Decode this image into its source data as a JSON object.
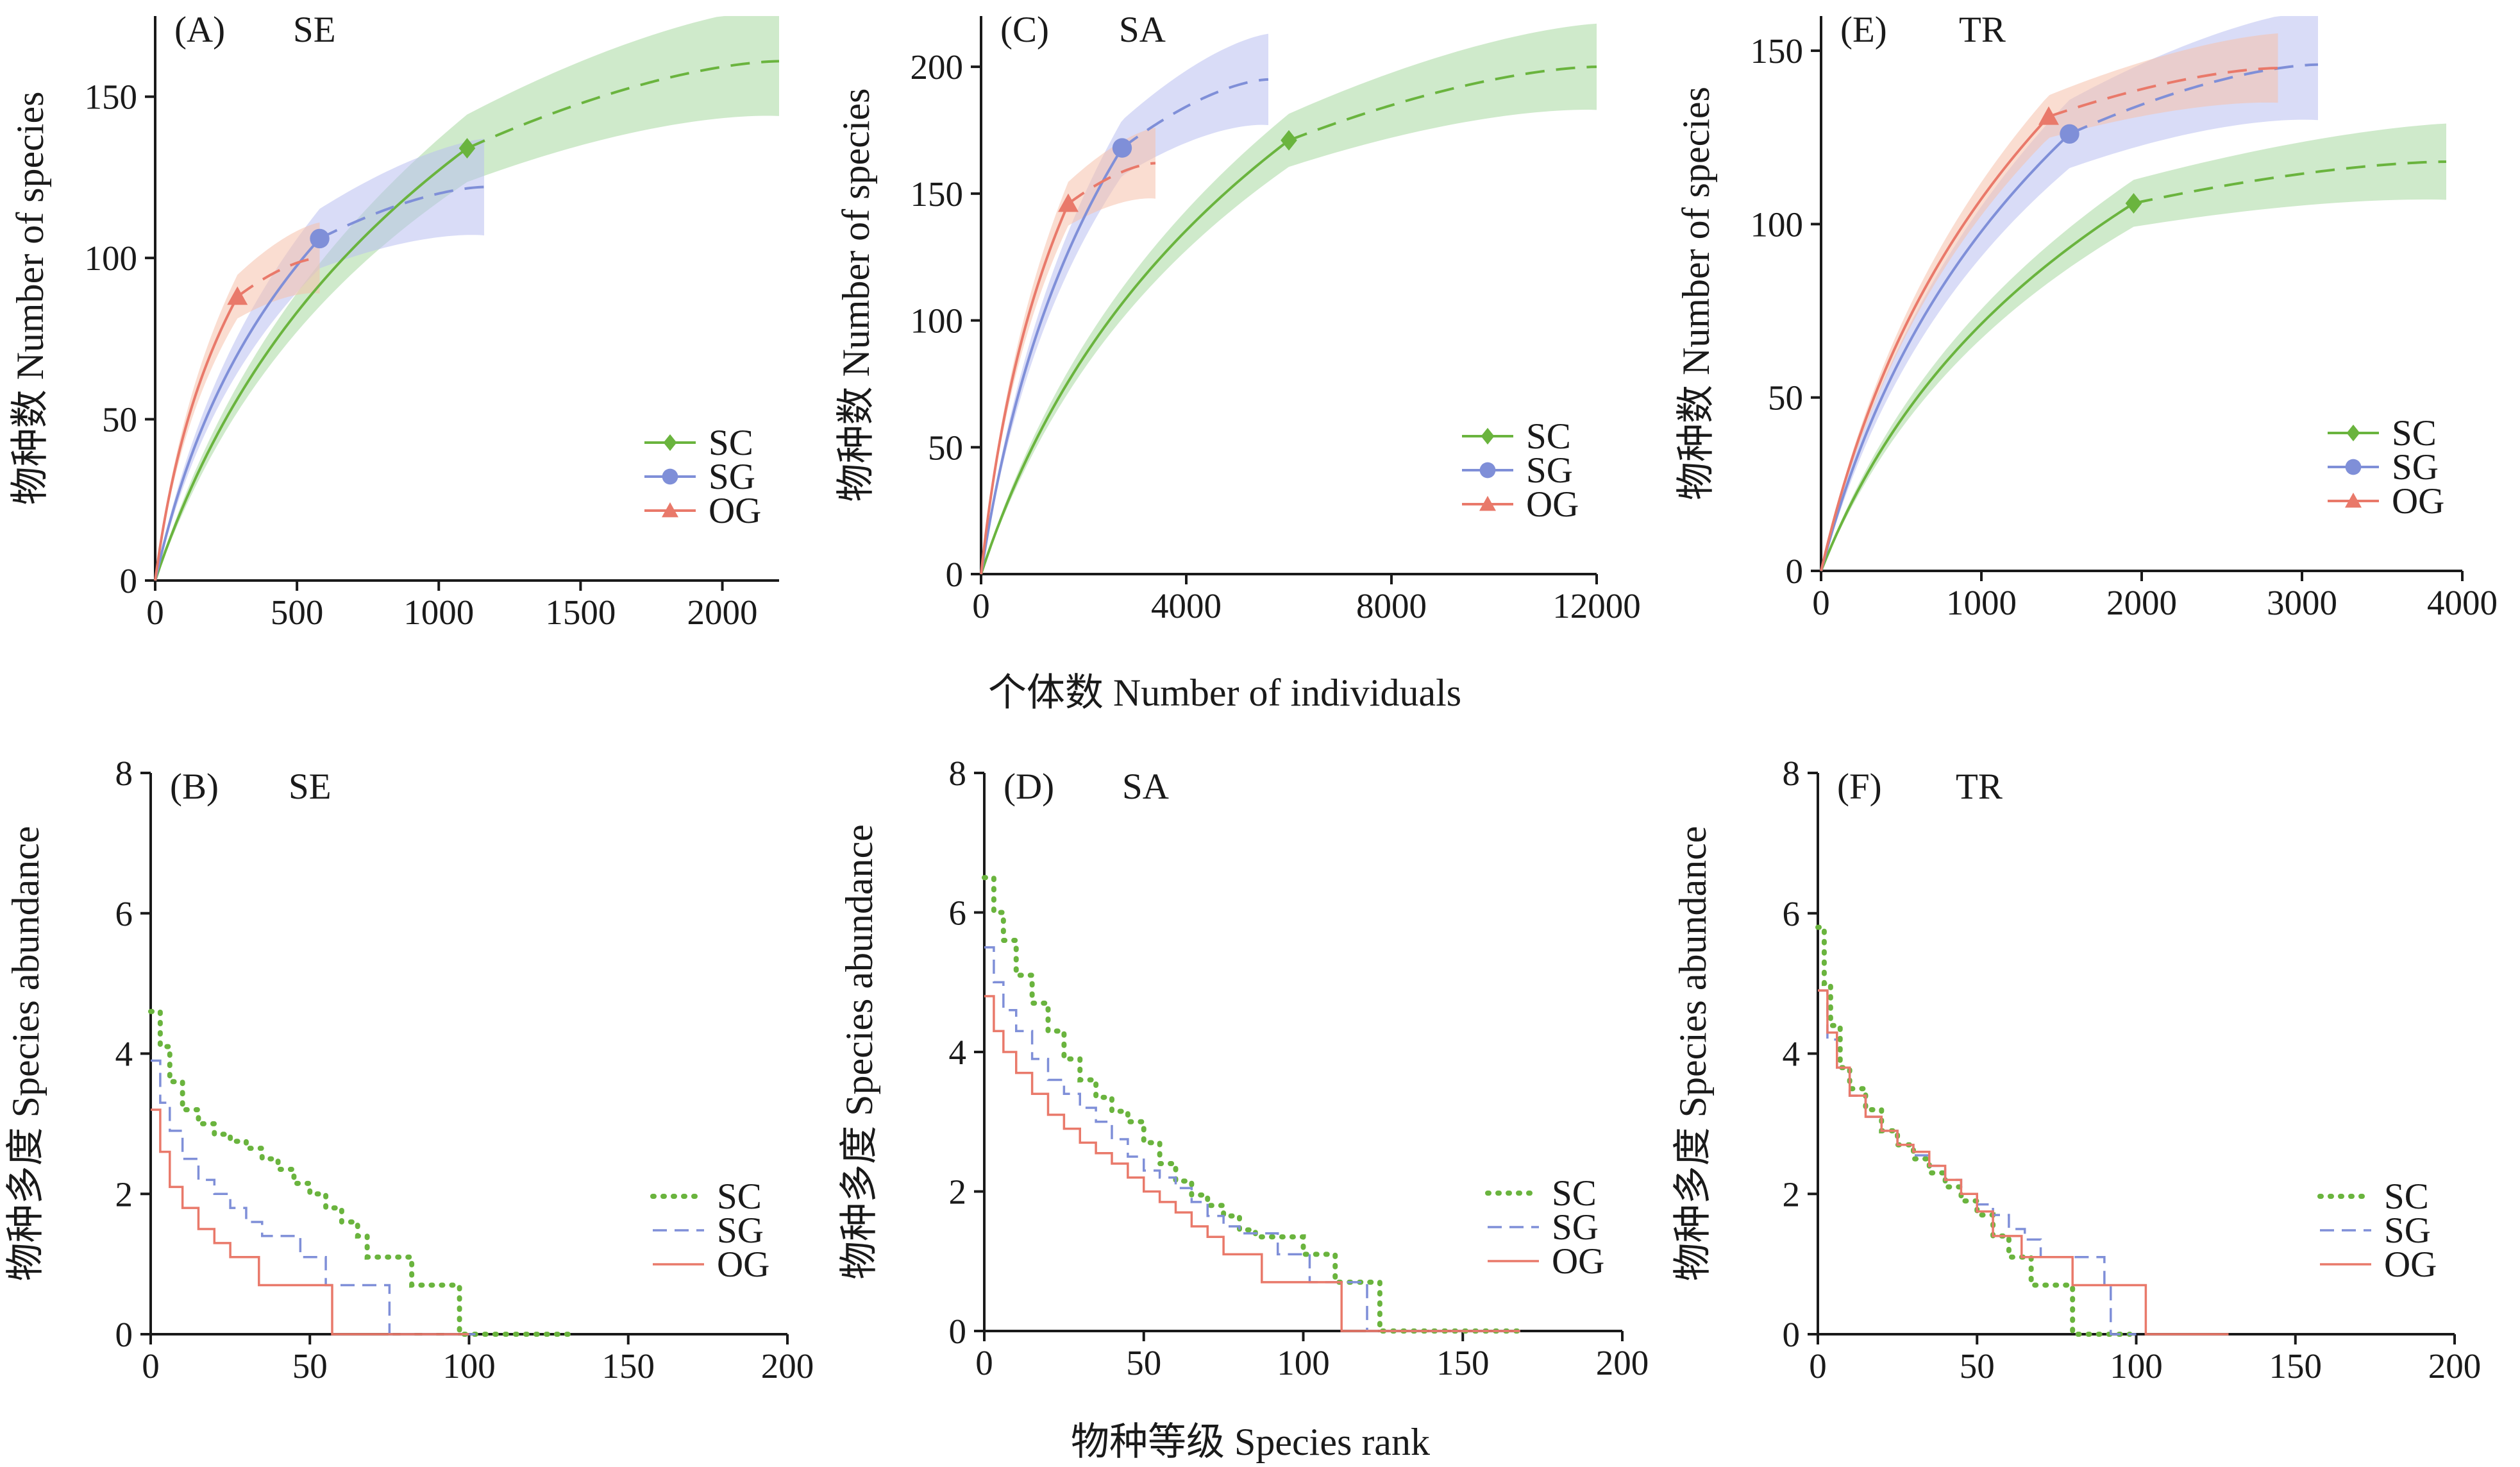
{
  "colors": {
    "SC": "#6ab43e",
    "SG": "#7f8fd8",
    "OG": "#e9796a",
    "SC_band": "#a8d8a0",
    "SG_band": "#b9bff0",
    "OG_band": "#f6c1ab",
    "axis": "#1a1a1a"
  },
  "shared_labels": {
    "top_xlabel": "个体数 Number of individuals",
    "bottom_xlabel": "物种等级 Species rank"
  },
  "chart_data": [
    {
      "id": "A",
      "type": "line",
      "panel_label": "(A)",
      "site": "SE",
      "ylabel": "物种数 Number of species",
      "xlim": [
        0,
        2200
      ],
      "ylim": [
        0,
        175
      ],
      "xticks": [
        0,
        500,
        1000,
        1500,
        2000
      ],
      "yticks": [
        0,
        50,
        100,
        150
      ],
      "legend_position": "bottom-right",
      "legend_marker": "line-marker",
      "series": [
        {
          "name": "SC",
          "marker": "diamond",
          "observed": {
            "x": 1100,
            "y": 134
          },
          "extrapolated_max": 2200,
          "end_value": 161,
          "band_halfwidth": 17
        },
        {
          "name": "SG",
          "marker": "circle",
          "observed": {
            "x": 580,
            "y": 106
          },
          "extrapolated_max": 1160,
          "end_value": 122,
          "band_halfwidth": 15
        },
        {
          "name": "OG",
          "marker": "triangle",
          "observed": {
            "x": 290,
            "y": 88
          },
          "extrapolated_max": 580,
          "end_value": 100,
          "band_halfwidth": 11
        }
      ]
    },
    {
      "id": "C",
      "type": "line",
      "panel_label": "(C)",
      "site": "SA",
      "ylabel": "物种数 Number of species",
      "xlim": [
        0,
        12000
      ],
      "ylim": [
        0,
        220
      ],
      "xticks": [
        0,
        4000,
        8000,
        12000
      ],
      "yticks": [
        0,
        50,
        100,
        150,
        200
      ],
      "legend_position": "bottom-right",
      "legend_marker": "line-marker",
      "series": [
        {
          "name": "SC",
          "marker": "diamond",
          "observed": {
            "x": 6000,
            "y": 171
          },
          "extrapolated_max": 12000,
          "end_value": 200,
          "band_halfwidth": 17
        },
        {
          "name": "SG",
          "marker": "circle",
          "observed": {
            "x": 2750,
            "y": 168
          },
          "extrapolated_max": 5600,
          "end_value": 195,
          "band_halfwidth": 18
        },
        {
          "name": "OG",
          "marker": "triangle",
          "observed": {
            "x": 1700,
            "y": 146
          },
          "extrapolated_max": 3400,
          "end_value": 162,
          "band_halfwidth": 14
        }
      ]
    },
    {
      "id": "E",
      "type": "line",
      "panel_label": "(E)",
      "site": "TR",
      "ylabel": "物种数 Number of species",
      "xlim": [
        0,
        4000
      ],
      "ylim": [
        0,
        160
      ],
      "xticks": [
        0,
        1000,
        2000,
        3000,
        4000
      ],
      "yticks": [
        0,
        50,
        100,
        150
      ],
      "legend_position": "bottom-right",
      "legend_marker": "line-marker",
      "series": [
        {
          "name": "SC",
          "marker": "diamond",
          "observed": {
            "x": 1950,
            "y": 106
          },
          "extrapolated_max": 3900,
          "end_value": 118,
          "band_halfwidth": 11
        },
        {
          "name": "SG",
          "marker": "circle",
          "observed": {
            "x": 1550,
            "y": 126
          },
          "extrapolated_max": 3100,
          "end_value": 146,
          "band_halfwidth": 16
        },
        {
          "name": "OG",
          "marker": "triangle",
          "observed": {
            "x": 1420,
            "y": 131
          },
          "extrapolated_max": 2850,
          "end_value": 145,
          "band_halfwidth": 10
        }
      ]
    },
    {
      "id": "B",
      "type": "line",
      "panel_label": "(B)",
      "site": "SE",
      "ylabel": "物种多度 Species abundance",
      "xlim": [
        0,
        200
      ],
      "ylim": [
        0,
        8
      ],
      "xticks": [
        0,
        50,
        100,
        150,
        200
      ],
      "yticks": [
        0,
        2,
        4,
        6,
        8
      ],
      "legend_position": "bottom-right",
      "legend_marker": "line-style",
      "series": [
        {
          "name": "SC",
          "style": "dotted",
          "points": [
            [
              0,
              4.6
            ],
            [
              3,
              4.1
            ],
            [
              6,
              3.6
            ],
            [
              10,
              3.2
            ],
            [
              15,
              3.0
            ],
            [
              20,
              2.85
            ],
            [
              25,
              2.75
            ],
            [
              30,
              2.65
            ],
            [
              35,
              2.5
            ],
            [
              40,
              2.35
            ],
            [
              45,
              2.15
            ],
            [
              50,
              2.0
            ],
            [
              55,
              1.8
            ],
            [
              60,
              1.6
            ],
            [
              65,
              1.4
            ],
            [
              68,
              1.1
            ],
            [
              80,
              1.1
            ],
            [
              82,
              0.7
            ],
            [
              95,
              0.7
            ],
            [
              97,
              0
            ],
            [
              132,
              0
            ]
          ]
        },
        {
          "name": "SG",
          "style": "dashed",
          "points": [
            [
              0,
              3.9
            ],
            [
              3,
              3.3
            ],
            [
              6,
              2.9
            ],
            [
              10,
              2.5
            ],
            [
              15,
              2.2
            ],
            [
              20,
              2.0
            ],
            [
              25,
              1.8
            ],
            [
              30,
              1.6
            ],
            [
              35,
              1.4
            ],
            [
              45,
              1.4
            ],
            [
              47,
              1.1
            ],
            [
              53,
              1.1
            ],
            [
              55,
              0.7
            ],
            [
              75,
              0.7
            ],
            [
              75,
              0
            ],
            [
              102,
              0
            ]
          ]
        },
        {
          "name": "OG",
          "style": "solid",
          "points": [
            [
              0,
              3.2
            ],
            [
              3,
              2.6
            ],
            [
              6,
              2.1
            ],
            [
              10,
              1.8
            ],
            [
              15,
              1.5
            ],
            [
              20,
              1.3
            ],
            [
              25,
              1.1
            ],
            [
              32,
              1.1
            ],
            [
              34,
              0.7
            ],
            [
              56,
              0.7
            ],
            [
              57,
              0
            ],
            [
              100,
              0
            ]
          ]
        }
      ]
    },
    {
      "id": "D",
      "type": "line",
      "panel_label": "(D)",
      "site": "SA",
      "ylabel": "物种多度 Species abundance",
      "xlim": [
        0,
        200
      ],
      "ylim": [
        0,
        8
      ],
      "xticks": [
        0,
        50,
        100,
        150,
        200
      ],
      "yticks": [
        0,
        2,
        4,
        6,
        8
      ],
      "legend_position": "bottom-right",
      "legend_marker": "line-style",
      "series": [
        {
          "name": "SC",
          "style": "dotted",
          "points": [
            [
              0,
              6.5
            ],
            [
              3,
              6.0
            ],
            [
              6,
              5.6
            ],
            [
              10,
              5.1
            ],
            [
              15,
              4.7
            ],
            [
              20,
              4.3
            ],
            [
              25,
              3.9
            ],
            [
              30,
              3.6
            ],
            [
              35,
              3.35
            ],
            [
              40,
              3.15
            ],
            [
              45,
              3.0
            ],
            [
              50,
              2.7
            ],
            [
              55,
              2.4
            ],
            [
              60,
              2.15
            ],
            [
              65,
              1.95
            ],
            [
              70,
              1.8
            ],
            [
              75,
              1.65
            ],
            [
              80,
              1.45
            ],
            [
              85,
              1.35
            ],
            [
              95,
              1.35
            ],
            [
              100,
              1.1
            ],
            [
              108,
              1.1
            ],
            [
              110,
              0.7
            ],
            [
              123,
              0.7
            ],
            [
              124,
              0
            ],
            [
              168,
              0
            ]
          ]
        },
        {
          "name": "SG",
          "style": "dashed",
          "points": [
            [
              0,
              5.5
            ],
            [
              3,
              5.0
            ],
            [
              6,
              4.6
            ],
            [
              10,
              4.3
            ],
            [
              15,
              3.9
            ],
            [
              20,
              3.6
            ],
            [
              25,
              3.4
            ],
            [
              30,
              3.2
            ],
            [
              35,
              3.0
            ],
            [
              40,
              2.75
            ],
            [
              45,
              2.5
            ],
            [
              50,
              2.3
            ],
            [
              55,
              2.2
            ],
            [
              60,
              2.05
            ],
            [
              65,
              1.85
            ],
            [
              70,
              1.65
            ],
            [
              75,
              1.5
            ],
            [
              80,
              1.4
            ],
            [
              90,
              1.4
            ],
            [
              92,
              1.1
            ],
            [
              100,
              1.1
            ],
            [
              102,
              0.7
            ],
            [
              118,
              0.7
            ],
            [
              120,
              0
            ],
            [
              168,
              0
            ]
          ]
        },
        {
          "name": "OG",
          "style": "solid",
          "points": [
            [
              0,
              4.8
            ],
            [
              3,
              4.3
            ],
            [
              6,
              4.0
            ],
            [
              10,
              3.7
            ],
            [
              15,
              3.4
            ],
            [
              20,
              3.1
            ],
            [
              25,
              2.9
            ],
            [
              30,
              2.7
            ],
            [
              35,
              2.55
            ],
            [
              40,
              2.4
            ],
            [
              45,
              2.2
            ],
            [
              50,
              2.0
            ],
            [
              55,
              1.85
            ],
            [
              60,
              1.7
            ],
            [
              65,
              1.5
            ],
            [
              70,
              1.35
            ],
            [
              75,
              1.1
            ],
            [
              85,
              1.1
            ],
            [
              87,
              0.7
            ],
            [
              110,
              0.7
            ],
            [
              112,
              0
            ],
            [
              168,
              0
            ]
          ]
        }
      ]
    },
    {
      "id": "F",
      "type": "line",
      "panel_label": "(F)",
      "site": "TR",
      "ylabel": "物种多度 Species abundance",
      "xlim": [
        0,
        200
      ],
      "ylim": [
        0,
        8
      ],
      "xticks": [
        0,
        50,
        100,
        150,
        200
      ],
      "yticks": [
        0,
        2,
        4,
        6,
        8
      ],
      "legend_position": "bottom-right",
      "legend_marker": "line-style",
      "series": [
        {
          "name": "SC",
          "style": "dotted",
          "points": [
            [
              0,
              5.8
            ],
            [
              2,
              5.0
            ],
            [
              4,
              4.4
            ],
            [
              7,
              3.8
            ],
            [
              10,
              3.5
            ],
            [
              15,
              3.2
            ],
            [
              20,
              2.9
            ],
            [
              25,
              2.7
            ],
            [
              30,
              2.5
            ],
            [
              35,
              2.3
            ],
            [
              40,
              2.1
            ],
            [
              45,
              1.9
            ],
            [
              50,
              1.7
            ],
            [
              55,
              1.4
            ],
            [
              60,
              1.1
            ],
            [
              65,
              1.1
            ],
            [
              67,
              0.7
            ],
            [
              78,
              0.7
            ],
            [
              80,
              0
            ],
            [
              98,
              0
            ]
          ]
        },
        {
          "name": "SG",
          "style": "dashed",
          "points": [
            [
              0,
              4.9
            ],
            [
              3,
              4.2
            ],
            [
              6,
              3.8
            ],
            [
              10,
              3.4
            ],
            [
              15,
              3.1
            ],
            [
              20,
              2.9
            ],
            [
              25,
              2.7
            ],
            [
              30,
              2.55
            ],
            [
              35,
              2.4
            ],
            [
              40,
              2.2
            ],
            [
              45,
              2.0
            ],
            [
              50,
              1.85
            ],
            [
              55,
              1.7
            ],
            [
              60,
              1.5
            ],
            [
              65,
              1.35
            ],
            [
              70,
              1.1
            ],
            [
              88,
              1.1
            ],
            [
              90,
              0.7
            ],
            [
              92,
              0
            ],
            [
              100,
              0
            ]
          ]
        },
        {
          "name": "OG",
          "style": "solid",
          "points": [
            [
              0,
              4.9
            ],
            [
              3,
              4.3
            ],
            [
              6,
              3.8
            ],
            [
              10,
              3.4
            ],
            [
              15,
              3.1
            ],
            [
              20,
              2.9
            ],
            [
              25,
              2.7
            ],
            [
              30,
              2.6
            ],
            [
              35,
              2.4
            ],
            [
              40,
              2.2
            ],
            [
              45,
              2.0
            ],
            [
              50,
              1.75
            ],
            [
              55,
              1.4
            ],
            [
              62,
              1.4
            ],
            [
              64,
              1.1
            ],
            [
              79,
              1.1
            ],
            [
              80,
              0.7
            ],
            [
              102,
              0.7
            ],
            [
              103,
              0
            ],
            [
              129,
              0
            ]
          ]
        }
      ]
    }
  ]
}
